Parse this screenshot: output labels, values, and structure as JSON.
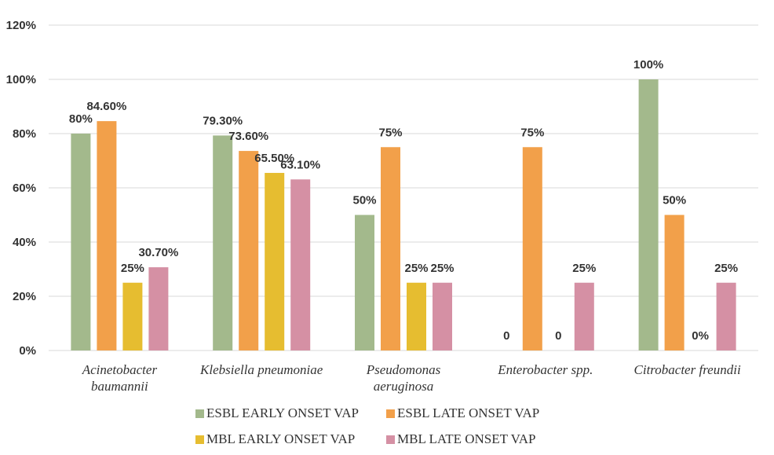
{
  "chart_data": {
    "type": "bar",
    "title": "",
    "xlabel": "",
    "ylabel": "",
    "ylim": [
      0,
      120
    ],
    "yticks": [
      "0%",
      "20%",
      "40%",
      "60%",
      "80%",
      "100%",
      "120%"
    ],
    "grid": true,
    "legend_position": "bottom",
    "categories": [
      [
        "Acinetobacter",
        "baumannii"
      ],
      [
        "Klebsiella pneumoniae"
      ],
      [
        "Pseudomonas",
        "aeruginosa"
      ],
      [
        "Enterobacter spp."
      ],
      [
        "Citrobacter freundii"
      ]
    ],
    "series": [
      {
        "name": "ESBL EARLY ONSET VAP",
        "color": "#a3b98c",
        "values": [
          80,
          79.3,
          50,
          0,
          100
        ],
        "labels": [
          "80%",
          "79.30%",
          "50%",
          "0",
          "100%"
        ]
      },
      {
        "name": "ESBL LATE ONSET VAP",
        "color": "#f2a04a",
        "values": [
          84.6,
          73.6,
          75,
          75,
          50
        ],
        "labels": [
          "84.60%",
          "73.60%",
          "75%",
          "75%",
          "50%"
        ]
      },
      {
        "name": "MBL EARLY ONSET  VAP",
        "color": "#e6bd30",
        "values": [
          25,
          65.5,
          25,
          0,
          0
        ],
        "labels": [
          "25%",
          "65.50%",
          "25%",
          "0",
          "0%"
        ]
      },
      {
        "name": "MBL LATE ONSET VAP",
        "color": "#d590a4",
        "values": [
          30.7,
          63.1,
          25,
          25,
          25
        ],
        "labels": [
          "30.70%",
          "63.10%",
          "25%",
          "25%",
          "25%"
        ]
      }
    ]
  }
}
